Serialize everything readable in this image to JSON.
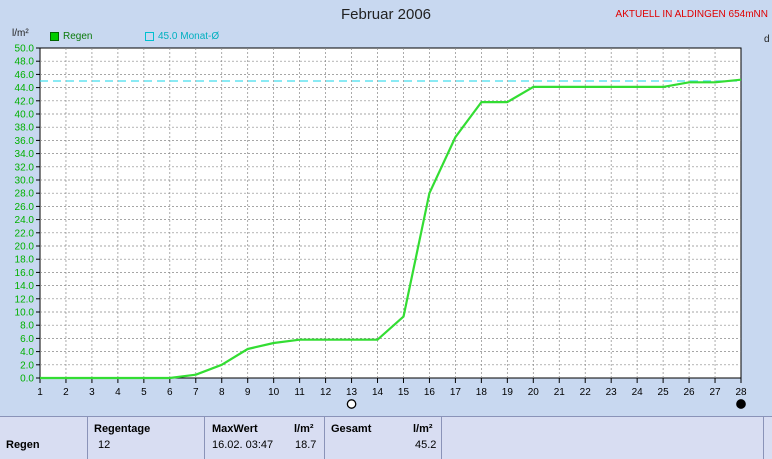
{
  "header": {
    "title": "Februar 2006",
    "subtitle": "AKTUELL IN ALDINGEN 654mNN"
  },
  "chart_data": {
    "type": "line",
    "title": "Februar 2006",
    "ylabel": "l/m²",
    "ylim": [
      0,
      50
    ],
    "y_ticks": [
      "0.0",
      "2.0",
      "4.0",
      "6.0",
      "8.0",
      "10.0",
      "12.0",
      "14.0",
      "16.0",
      "18.0",
      "20.0",
      "22.0",
      "24.0",
      "26.0",
      "28.0",
      "30.0",
      "32.0",
      "34.0",
      "36.0",
      "38.0",
      "40.0",
      "42.0",
      "44.0",
      "46.0",
      "48.0",
      "50.0"
    ],
    "x_ticks": [
      "1",
      "2",
      "3",
      "4",
      "5",
      "6",
      "7",
      "8",
      "9",
      "10",
      "11",
      "12",
      "13",
      "14",
      "15",
      "16",
      "17",
      "18",
      "19",
      "20",
      "21",
      "22",
      "23",
      "24",
      "25",
      "26",
      "27",
      "28"
    ],
    "right_label": "d",
    "grid": true,
    "legend_position": "top-left",
    "series": [
      {
        "name": "Regen",
        "color": "#33dd33",
        "x": [
          1,
          2,
          3,
          4,
          5,
          6,
          7,
          8,
          9,
          10,
          11,
          12,
          13,
          14,
          15,
          16,
          17,
          18,
          19,
          20,
          21,
          22,
          23,
          24,
          25,
          26,
          27,
          28
        ],
        "values": [
          0,
          0,
          0,
          0,
          0,
          0,
          0.5,
          2,
          4.4,
          5.3,
          5.8,
          5.8,
          5.8,
          5.8,
          9.3,
          28,
          36.5,
          41.8,
          41.8,
          44.1,
          44.1,
          44.1,
          44.1,
          44.1,
          44.1,
          44.8,
          44.8,
          45.2
        ]
      }
    ],
    "reference_line": {
      "name": "45.0 Monat-Ø",
      "value": 45.0,
      "color": "#44ddee"
    }
  },
  "stats": {
    "row_label": "Regen",
    "regentage_label": "Regentage",
    "regentage_value": "12",
    "maxwert_label": "MaxWert",
    "maxwert_unit": "l/m²",
    "maxwert_date": "16.02.  03:47",
    "maxwert_value": "18.7",
    "gesamt_label": "Gesamt",
    "gesamt_unit": "l/m²",
    "gesamt_value": "45.2"
  }
}
